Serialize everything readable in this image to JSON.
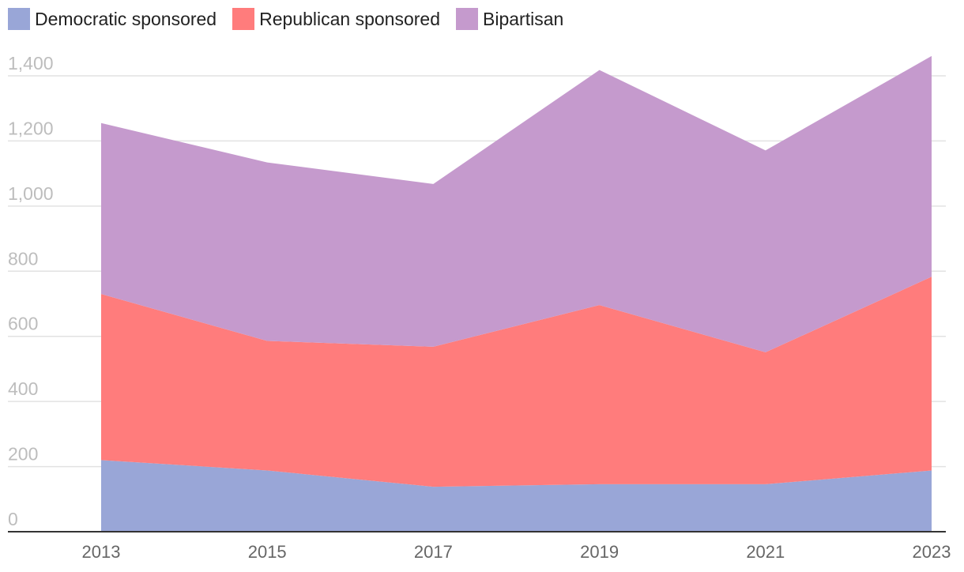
{
  "chart_data": {
    "type": "area",
    "stacked": true,
    "x": [
      "2013",
      "2015",
      "2017",
      "2019",
      "2021",
      "2023"
    ],
    "series": [
      {
        "name": "Democratic sponsored",
        "color": "#99a6d7",
        "values": [
          220,
          188,
          138,
          146,
          146,
          188
        ]
      },
      {
        "name": "Republican sponsored",
        "color": "#ff7c7c",
        "values": [
          510,
          398,
          430,
          550,
          405,
          595
        ]
      },
      {
        "name": "Bipartisan",
        "color": "#c59acd",
        "values": [
          525,
          548,
          500,
          722,
          620,
          678
        ]
      }
    ],
    "ylim": [
      0,
      1400
    ],
    "yticks": [
      "0",
      "200",
      "400",
      "600",
      "800",
      "1,000",
      "1,200",
      "1,400"
    ],
    "grid": true,
    "legend_position": "top-left",
    "xlabel": "",
    "ylabel": ""
  }
}
